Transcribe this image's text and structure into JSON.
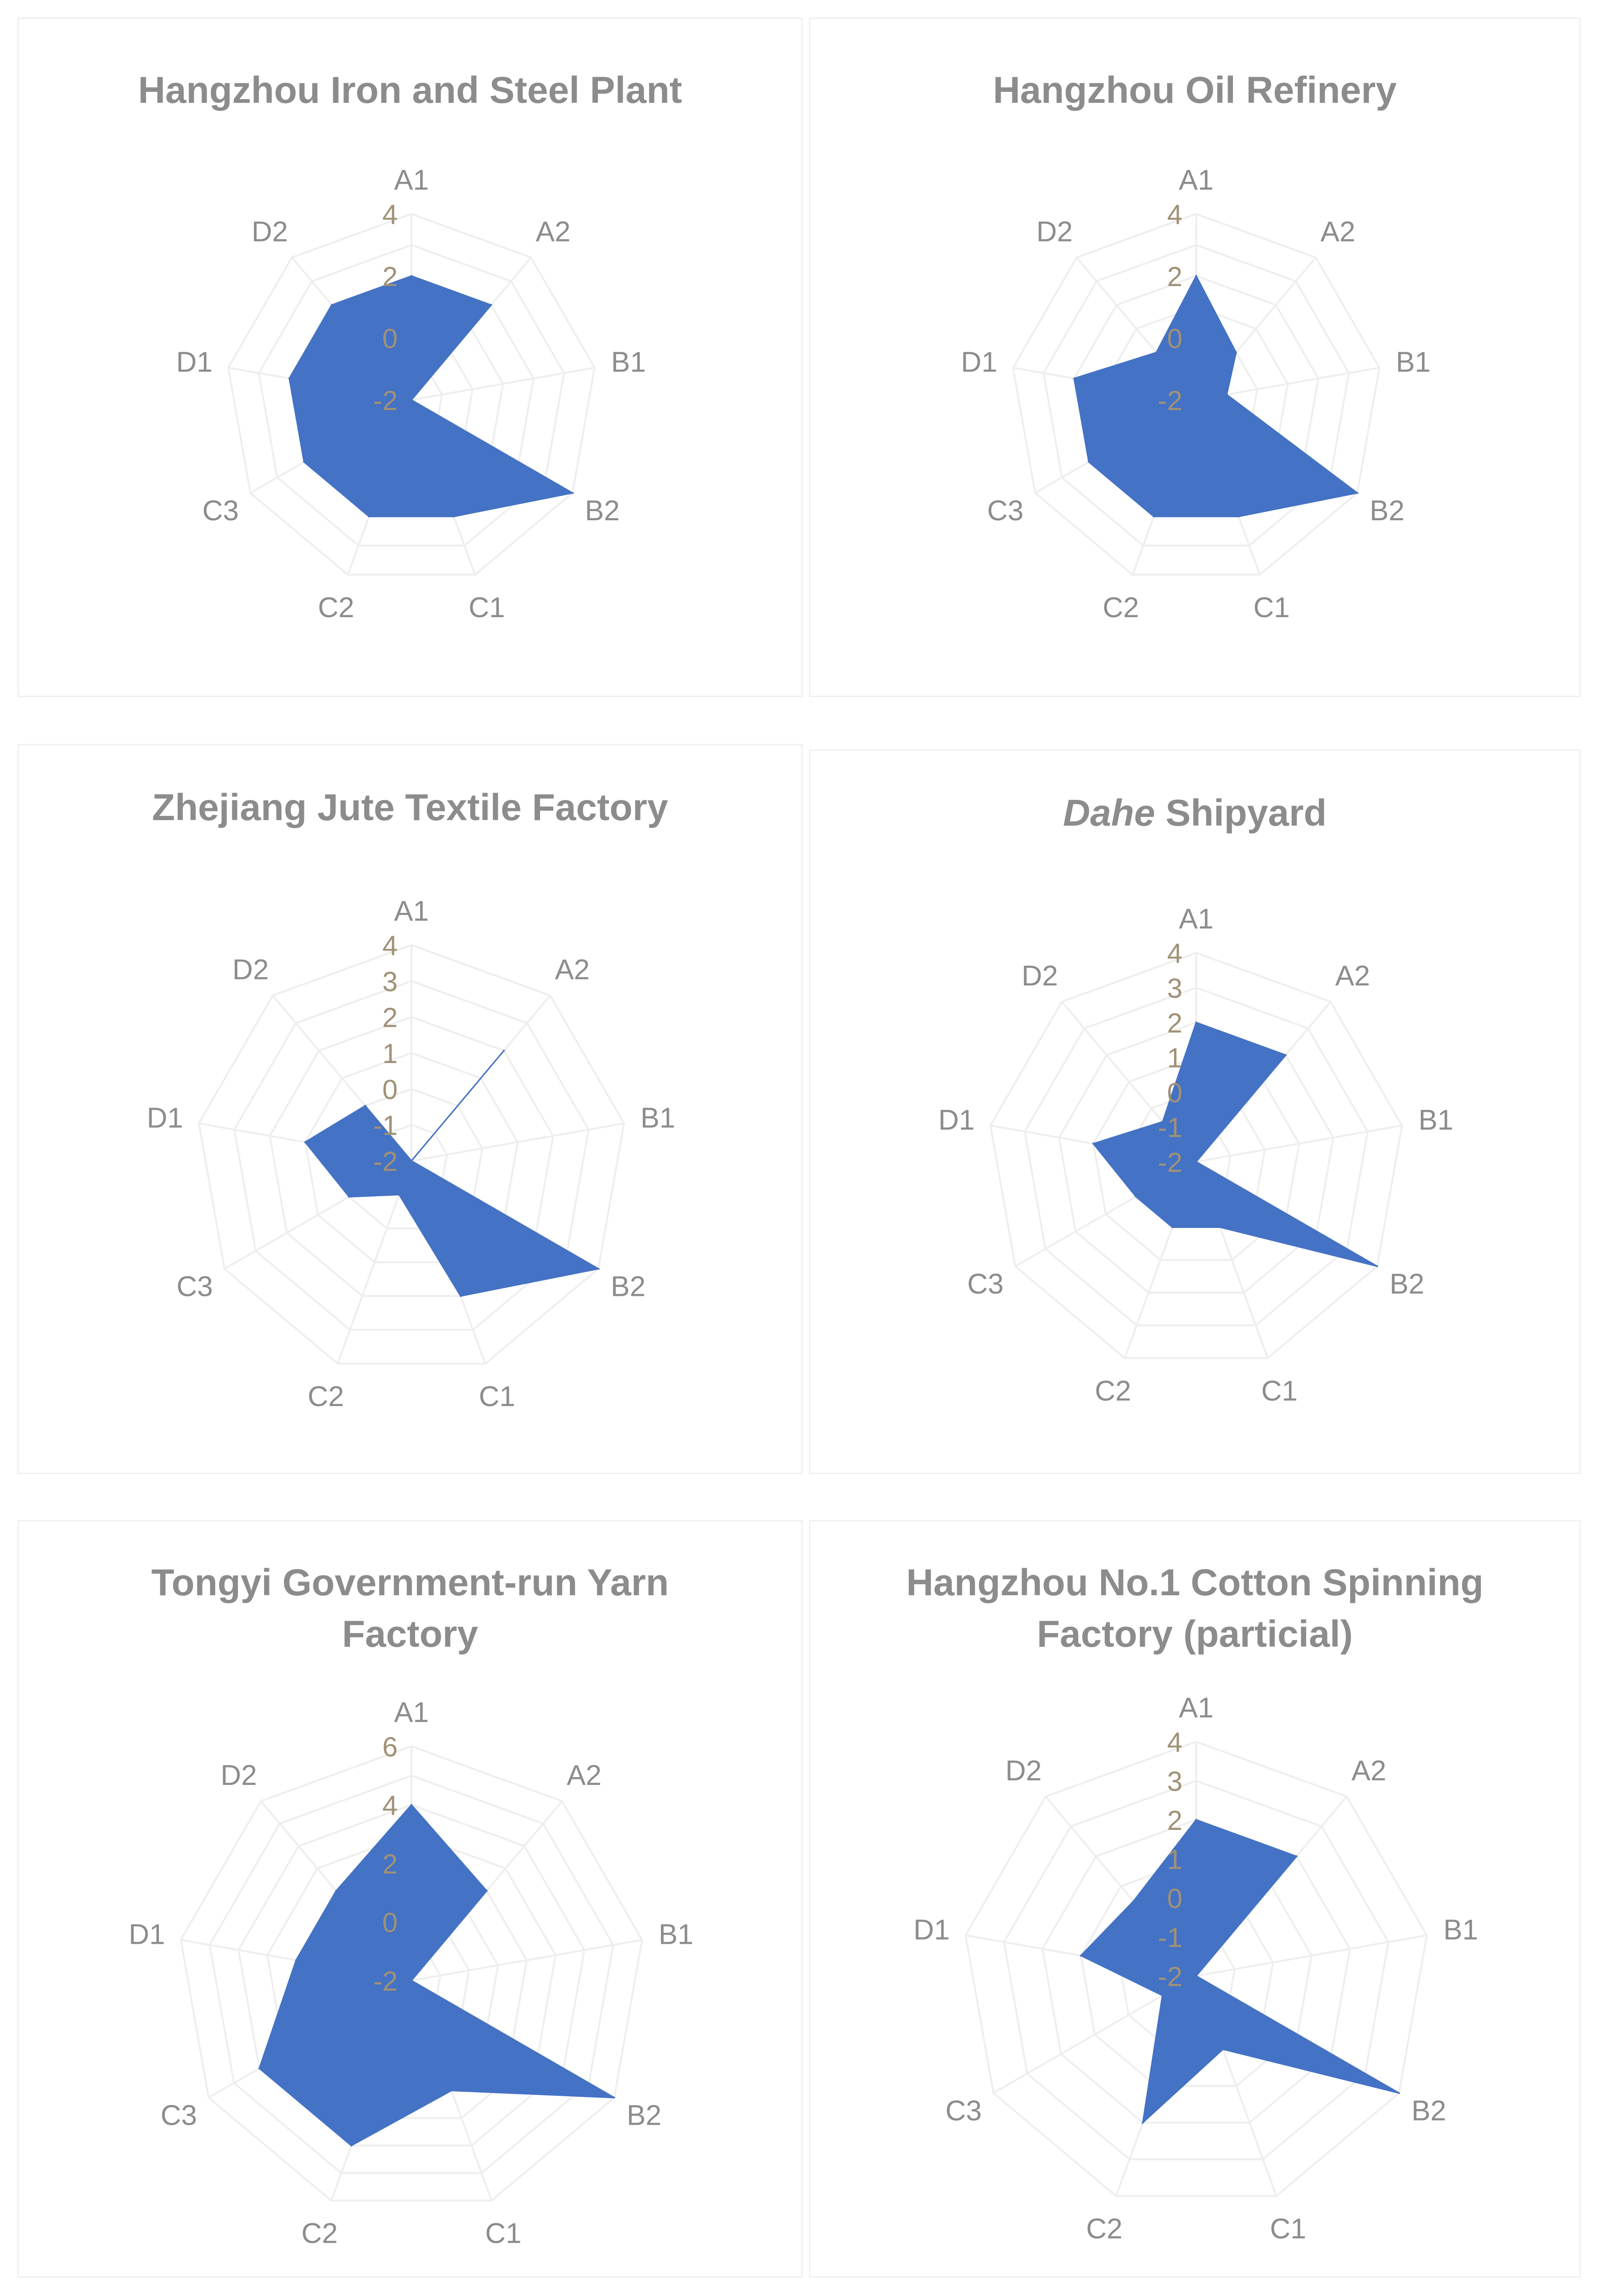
{
  "chart_data": [
    {
      "type": "radar",
      "title": "Hangzhou Iron and Steel Plant",
      "categories": [
        "A1",
        "A2",
        "B1",
        "B2",
        "C1",
        "C2",
        "C3",
        "D1",
        "D2"
      ],
      "values": [
        2,
        2,
        -2,
        4,
        2,
        2,
        2,
        2,
        2
      ],
      "ticks": [
        "4",
        "2",
        "0",
        "-2"
      ],
      "rmin": -2,
      "rmax": 4,
      "color": "#4472C4",
      "fill": true,
      "grid": true
    },
    {
      "type": "radar",
      "title": "Hangzhou Oil Refinery",
      "categories": [
        "A1",
        "A2",
        "B1",
        "B2",
        "C1",
        "C2",
        "C3",
        "D1",
        "D2"
      ],
      "values": [
        2,
        0,
        -1,
        4,
        2,
        2,
        2,
        2,
        0
      ],
      "ticks": [
        "4",
        "2",
        "0",
        "-2"
      ],
      "rmin": -2,
      "rmax": 4,
      "color": "#4472C4",
      "fill": true,
      "grid": true
    },
    {
      "type": "radar",
      "title": "Zhejiang Jute Textile Factory",
      "categories": [
        "A1",
        "A2",
        "B1",
        "B2",
        "C1",
        "C2",
        "C3",
        "D1",
        "D2"
      ],
      "values": [
        -2,
        2,
        -2,
        4,
        2,
        -1,
        0,
        1,
        0
      ],
      "ticks": [
        "4",
        "3",
        "2",
        "1",
        "0",
        "-1",
        "-2"
      ],
      "rmin": -2,
      "rmax": 4,
      "color": "#4472C4",
      "fill": true,
      "grid": true
    },
    {
      "type": "radar",
      "title": "Shipyard",
      "title_prefix": "Dahe",
      "categories": [
        "A1",
        "A2",
        "B1",
        "B2",
        "C1",
        "C2",
        "C3",
        "D1",
        "D2"
      ],
      "values": [
        2,
        2,
        -2,
        4,
        0,
        0,
        0,
        1,
        -0.5
      ],
      "ticks": [
        "4",
        "3",
        "2",
        "1",
        "0",
        "-1",
        "-2"
      ],
      "rmin": -2,
      "rmax": 4,
      "color": "#4472C4",
      "fill": true,
      "grid": true
    },
    {
      "type": "radar",
      "title": "Tongyi Government-run Yarn Factory",
      "categories": [
        "A1",
        "A2",
        "B1",
        "B2",
        "C1",
        "C2",
        "C3",
        "D1",
        "D2"
      ],
      "values": [
        4,
        2,
        -2,
        6,
        2,
        4,
        4,
        2,
        2
      ],
      "ticks": [
        "6",
        "4",
        "2",
        "0",
        "-2"
      ],
      "rmin": -2,
      "rmax": 6,
      "color": "#4472C4",
      "fill": true,
      "grid": true
    },
    {
      "type": "radar",
      "title": "Hangzhou No.1 Cotton Spinning Factory (particial)",
      "categories": [
        "A1",
        "A2",
        "B1",
        "B2",
        "C1",
        "C2",
        "C3",
        "D1",
        "D2"
      ],
      "values": [
        2,
        2,
        -2,
        4,
        0,
        2,
        -1,
        1,
        0.5
      ],
      "ticks": [
        "4",
        "3",
        "2",
        "1",
        "0",
        "-1",
        "-2"
      ],
      "rmin": -2,
      "rmax": 4,
      "color": "#4472C4",
      "fill": true,
      "grid": true
    }
  ]
}
